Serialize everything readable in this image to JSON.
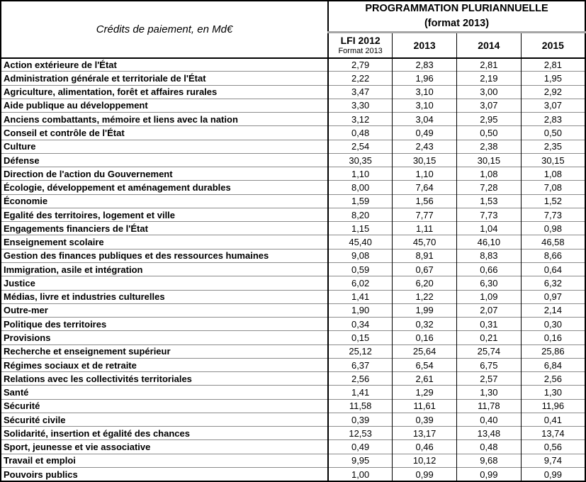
{
  "table": {
    "corner_label": "Crédits de paiement, en Md€",
    "group_header": {
      "line1": "PROGRAMMATION PLURIANNUELLE",
      "line2": "(format 2013)"
    },
    "columns": [
      {
        "label": "LFI 2012",
        "sublabel": "Format 2013"
      },
      {
        "label": "2013",
        "sublabel": ""
      },
      {
        "label": "2014",
        "sublabel": ""
      },
      {
        "label": "2015",
        "sublabel": ""
      }
    ],
    "rows": [
      {
        "label": "Action extérieure de l'État",
        "values": [
          "2,79",
          "2,83",
          "2,81",
          "2,81"
        ]
      },
      {
        "label": "Administration générale et territoriale de l'État",
        "values": [
          "2,22",
          "1,96",
          "2,19",
          "1,95"
        ]
      },
      {
        "label": "Agriculture, alimentation, forêt et affaires rurales",
        "values": [
          "3,47",
          "3,10",
          "3,00",
          "2,92"
        ]
      },
      {
        "label": "Aide publique au développement",
        "values": [
          "3,30",
          "3,10",
          "3,07",
          "3,07"
        ]
      },
      {
        "label": "Anciens combattants, mémoire et liens avec la nation",
        "values": [
          "3,12",
          "3,04",
          "2,95",
          "2,83"
        ]
      },
      {
        "label": "Conseil et contrôle de l'État",
        "values": [
          "0,48",
          "0,49",
          "0,50",
          "0,50"
        ]
      },
      {
        "label": "Culture",
        "values": [
          "2,54",
          "2,43",
          "2,38",
          "2,35"
        ]
      },
      {
        "label": "Défense",
        "values": [
          "30,35",
          "30,15",
          "30,15",
          "30,15"
        ]
      },
      {
        "label": "Direction de l'action du Gouvernement",
        "values": [
          "1,10",
          "1,10",
          "1,08",
          "1,08"
        ]
      },
      {
        "label": "Écologie, développement et aménagement durables",
        "values": [
          "8,00",
          "7,64",
          "7,28",
          "7,08"
        ]
      },
      {
        "label": "Économie",
        "values": [
          "1,59",
          "1,56",
          "1,53",
          "1,52"
        ]
      },
      {
        "label": "Egalité des territoires, logement et ville",
        "values": [
          "8,20",
          "7,77",
          "7,73",
          "7,73"
        ]
      },
      {
        "label": "Engagements financiers de l'État",
        "values": [
          "1,15",
          "1,11",
          "1,04",
          "0,98"
        ]
      },
      {
        "label": "Enseignement scolaire",
        "values": [
          "45,40",
          "45,70",
          "46,10",
          "46,58"
        ]
      },
      {
        "label": "Gestion des finances publiques et des ressources humaines",
        "values": [
          "9,08",
          "8,91",
          "8,83",
          "8,66"
        ]
      },
      {
        "label": "Immigration, asile et intégration",
        "values": [
          "0,59",
          "0,67",
          "0,66",
          "0,64"
        ]
      },
      {
        "label": "Justice",
        "values": [
          "6,02",
          "6,20",
          "6,30",
          "6,32"
        ]
      },
      {
        "label": "Médias, livre et industries culturelles",
        "values": [
          "1,41",
          "1,22",
          "1,09",
          "0,97"
        ]
      },
      {
        "label": "Outre-mer",
        "values": [
          "1,90",
          "1,99",
          "2,07",
          "2,14"
        ]
      },
      {
        "label": "Politique des territoires",
        "values": [
          "0,34",
          "0,32",
          "0,31",
          "0,30"
        ]
      },
      {
        "label": "Provisions",
        "values": [
          "0,15",
          "0,16",
          "0,21",
          "0,16"
        ]
      },
      {
        "label": "Recherche et enseignement supérieur",
        "values": [
          "25,12",
          "25,64",
          "25,74",
          "25,86"
        ]
      },
      {
        "label": "Régimes sociaux et de retraite",
        "values": [
          "6,37",
          "6,54",
          "6,75",
          "6,84"
        ]
      },
      {
        "label": "Relations avec les collectivités territoriales",
        "values": [
          "2,56",
          "2,61",
          "2,57",
          "2,56"
        ]
      },
      {
        "label": "Santé",
        "values": [
          "1,41",
          "1,29",
          "1,30",
          "1,30"
        ]
      },
      {
        "label": "Sécurité",
        "values": [
          "11,58",
          "11,61",
          "11,78",
          "11,96"
        ]
      },
      {
        "label": "Sécurité civile",
        "values": [
          "0,39",
          "0,39",
          "0,40",
          "0,41"
        ]
      },
      {
        "label": "Solidarité, insertion et égalité des chances",
        "values": [
          "12,53",
          "13,17",
          "13,48",
          "13,74"
        ]
      },
      {
        "label": "Sport, jeunesse et vie associative",
        "values": [
          "0,49",
          "0,46",
          "0,48",
          "0,56"
        ]
      },
      {
        "label": "Travail et emploi",
        "values": [
          "9,95",
          "10,12",
          "9,68",
          "9,74"
        ]
      },
      {
        "label": "Pouvoirs publics",
        "values": [
          "1,00",
          "0,99",
          "0,99",
          "0,99"
        ]
      }
    ],
    "colors": {
      "border_strong": "#000000",
      "row_divider": "#8c8c8c",
      "group_divider": "#a6a6a6",
      "text": "#000000",
      "background": "#ffffff"
    }
  }
}
